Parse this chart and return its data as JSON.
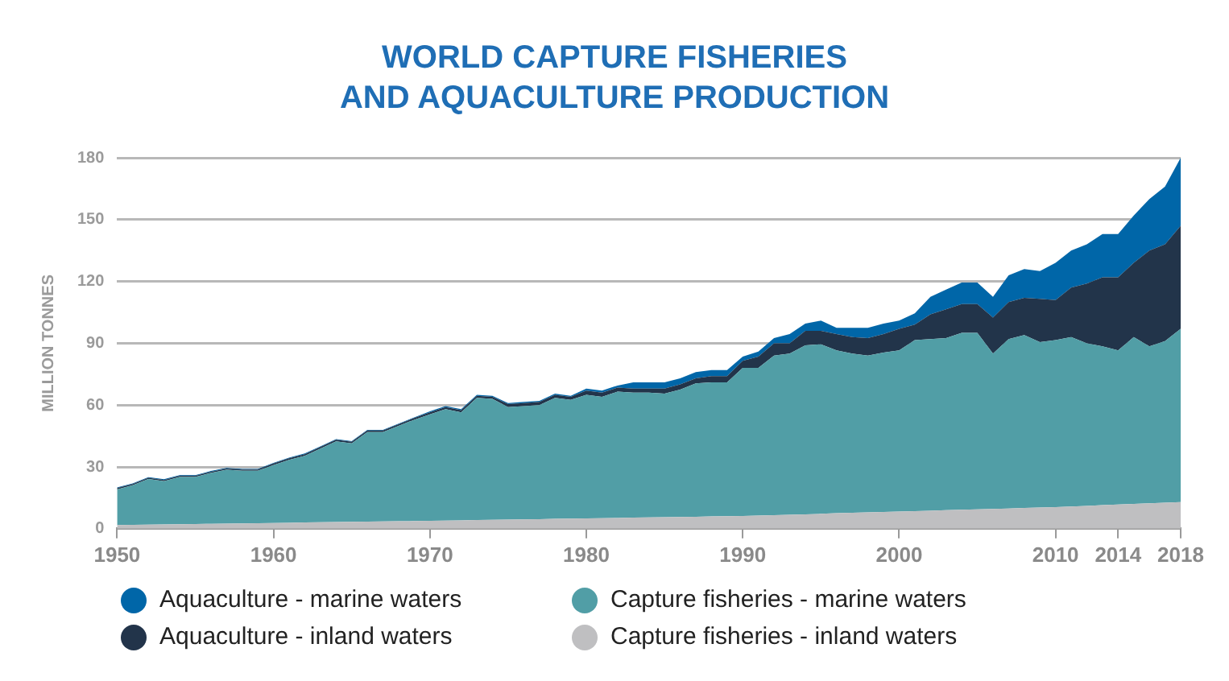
{
  "chart_data": {
    "type": "area",
    "title": "WORLD CAPTURE FISHERIES\nAND AQUACULTURE PRODUCTION",
    "ylabel": "MILLION TONNES",
    "categories": [
      "1950",
      null,
      null,
      null,
      null,
      null,
      null,
      null,
      null,
      null,
      "1960",
      null,
      null,
      null,
      null,
      null,
      null,
      null,
      null,
      null,
      "1970",
      null,
      null,
      null,
      null,
      null,
      null,
      null,
      null,
      null,
      "1980",
      null,
      null,
      null,
      null,
      null,
      null,
      null,
      null,
      null,
      "1990",
      null,
      null,
      null,
      null,
      null,
      null,
      null,
      null,
      null,
      "2000",
      null,
      null,
      null,
      null,
      null,
      null,
      null,
      null,
      null,
      "2010",
      null,
      null,
      null,
      "2014",
      null,
      null,
      null,
      "2018"
    ],
    "stacked": true,
    "ylim": [
      0,
      180
    ],
    "yticks": [
      0,
      30,
      60,
      90,
      120,
      150,
      180
    ],
    "grid": "y",
    "legend": "bottom",
    "series": [
      {
        "name": "Capture fisheries - inland waters",
        "color": "#bfbfc1",
        "values": [
          1.8,
          1.9,
          2.0,
          2.1,
          2.2,
          2.3,
          2.4,
          2.5,
          2.6,
          2.7,
          2.8,
          2.9,
          3.0,
          3.1,
          3.2,
          3.3,
          3.4,
          3.5,
          3.6,
          3.7,
          3.8,
          3.9,
          4.0,
          4.2,
          4.3,
          4.4,
          4.5,
          4.6,
          4.8,
          4.9,
          5.0,
          5.1,
          5.2,
          5.4,
          5.5,
          5.6,
          5.7,
          5.8,
          6.0,
          6.1,
          6.2,
          6.4,
          6.6,
          6.8,
          7.0,
          7.2,
          7.5,
          7.7,
          7.9,
          8.1,
          8.3,
          8.5,
          8.7,
          9.0,
          9.2,
          9.4,
          9.6,
          9.8,
          10.1,
          10.3,
          10.5,
          10.8,
          11.1,
          11.4,
          11.7,
          12.0,
          12.3,
          12.6,
          12.9
        ]
      },
      {
        "name": "Capture fisheries - marine waters",
        "color": "#519ea6",
        "values": [
          17.3,
          19.2,
          22.1,
          21.0,
          22.9,
          22.8,
          24.7,
          26.1,
          25.5,
          25.4,
          28.1,
          30.5,
          32.4,
          35.8,
          39.2,
          38.1,
          43.5,
          43.4,
          46.3,
          49.2,
          51.7,
          54.1,
          52.5,
          59.3,
          58.7,
          54.6,
          55.0,
          55.4,
          58.7,
          57.6,
          60.0,
          58.9,
          61.3,
          60.6,
          60.5,
          59.9,
          61.8,
          64.7,
          65.0,
          64.9,
          71.8,
          71.6,
          77.4,
          78.2,
          82.0,
          82.3,
          79.0,
          77.3,
          76.1,
          77.4,
          78.2,
          83.0,
          83.3,
          83.5,
          85.8,
          85.6,
          75.4,
          82.2,
          83.9,
          80.2,
          81.0,
          82.2,
          78.9,
          77.1,
          74.8,
          81.0,
          76.2,
          78.4,
          84.1
        ]
      },
      {
        "name": "Aquaculture - inland waters",
        "color": "#22344a",
        "values": [
          0.6,
          0.6,
          0.6,
          0.6,
          0.6,
          0.6,
          0.6,
          0.6,
          0.6,
          0.6,
          0.8,
          0.8,
          0.8,
          0.8,
          0.8,
          0.8,
          0.8,
          0.8,
          0.8,
          0.8,
          1.0,
          1.0,
          1.0,
          1.0,
          1.0,
          1.5,
          1.5,
          1.5,
          1.5,
          1.5,
          2.0,
          2.0,
          2.0,
          2.0,
          2.0,
          2.5,
          2.5,
          2.5,
          3,
          3,
          3.5,
          5.5,
          6,
          5,
          7,
          6.5,
          8,
          8,
          8.5,
          9,
          10.5,
          7.5,
          12,
          14,
          14,
          14,
          17.5,
          18,
          18,
          21,
          19.5,
          24,
          29,
          33.5,
          35.5,
          36,
          46.5,
          47,
          50
        ]
      },
      {
        "name": "Aquaculture - marine waters",
        "color": "#0066a8",
        "values": [
          0.3,
          0.3,
          0.3,
          0.3,
          0.3,
          0.3,
          0.3,
          0.3,
          0.3,
          0.3,
          0.3,
          0.3,
          0.3,
          0.3,
          0.3,
          0.3,
          0.3,
          0.3,
          0.3,
          0.3,
          0.5,
          0.5,
          0.5,
          0.5,
          0.5,
          0.5,
          0.5,
          0.5,
          0.5,
          0.5,
          1,
          1,
          1,
          3,
          3,
          3,
          3,
          3,
          3,
          3,
          2,
          2.5,
          2.5,
          4.5,
          3.5,
          5,
          3,
          4.5,
          5,
          5,
          4,
          5.5,
          8.5,
          9.5,
          10.5,
          10.5,
          10,
          13,
          14,
          13.5,
          18,
          18,
          19,
          21,
          21,
          23,
          25,
          28,
          33
        ]
      }
    ]
  }
}
